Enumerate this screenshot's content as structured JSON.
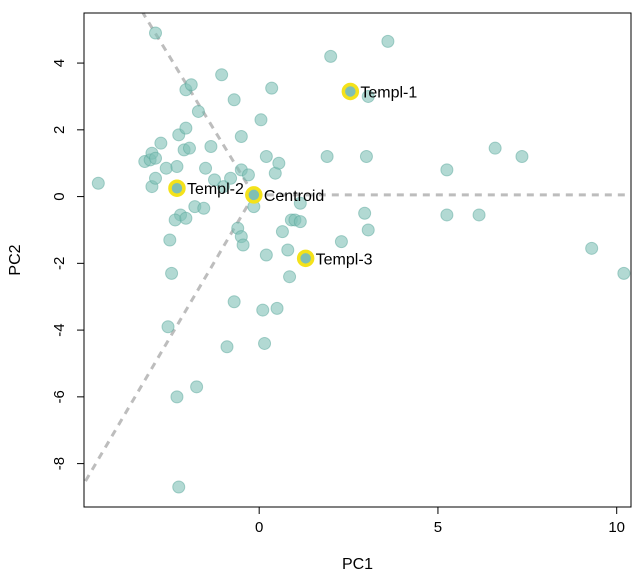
{
  "chart_data": {
    "type": "scatter",
    "title": "",
    "xlabel": "PC1",
    "ylabel": "PC2",
    "xlim": [
      -4.9,
      10.4
    ],
    "ylim": [
      -9.3,
      5.5
    ],
    "xticks": [
      "0",
      "5",
      "10"
    ],
    "xtick_values": [
      0,
      5,
      10
    ],
    "yticks": [
      "-8",
      "-6",
      "-4",
      "-2",
      "0",
      "2",
      "4"
    ],
    "ytick_values": [
      -8,
      -6,
      -4,
      -2,
      0,
      2,
      4
    ],
    "grid": false,
    "colors": {
      "points": "#7fbfb5",
      "highlight_ring": "#f4e21a",
      "dashed_lines": "#bdbdbd"
    },
    "points": [
      {
        "x": -4.5,
        "y": 0.4
      },
      {
        "x": -2.9,
        "y": 4.9
      },
      {
        "x": -3.2,
        "y": 1.05
      },
      {
        "x": -3.05,
        "y": 1.1
      },
      {
        "x": -3.0,
        "y": 1.3
      },
      {
        "x": -2.9,
        "y": 1.15
      },
      {
        "x": -2.75,
        "y": 1.6
      },
      {
        "x": -3.0,
        "y": 0.3
      },
      {
        "x": -2.9,
        "y": 0.55
      },
      {
        "x": -2.6,
        "y": 0.85
      },
      {
        "x": -2.3,
        "y": 0.9
      },
      {
        "x": -2.25,
        "y": 1.85
      },
      {
        "x": -2.05,
        "y": 2.05
      },
      {
        "x": -2.1,
        "y": 1.4
      },
      {
        "x": -1.95,
        "y": 1.45
      },
      {
        "x": -2.05,
        "y": 3.2
      },
      {
        "x": -1.9,
        "y": 3.35
      },
      {
        "x": -1.7,
        "y": 2.55
      },
      {
        "x": -1.5,
        "y": 0.85
      },
      {
        "x": -1.35,
        "y": 1.5
      },
      {
        "x": -1.05,
        "y": 3.65
      },
      {
        "x": -1.25,
        "y": 0.5
      },
      {
        "x": -1.0,
        "y": 0.3
      },
      {
        "x": -0.8,
        "y": 0.55
      },
      {
        "x": -0.7,
        "y": 2.9
      },
      {
        "x": -0.5,
        "y": 1.8
      },
      {
        "x": -0.5,
        "y": 0.8
      },
      {
        "x": -0.3,
        "y": 0.65
      },
      {
        "x": -0.15,
        "y": -0.3
      },
      {
        "x": 0.05,
        "y": 2.3
      },
      {
        "x": 0.2,
        "y": 1.2
      },
      {
        "x": 0.35,
        "y": 3.25
      },
      {
        "x": 0.45,
        "y": 0.7
      },
      {
        "x": 0.55,
        "y": 1.0
      },
      {
        "x": -1.8,
        "y": -0.3
      },
      {
        "x": -1.55,
        "y": -0.35
      },
      {
        "x": -2.2,
        "y": -0.55
      },
      {
        "x": -2.35,
        "y": -0.7
      },
      {
        "x": -2.05,
        "y": -0.65
      },
      {
        "x": -2.5,
        "y": -1.3
      },
      {
        "x": -2.45,
        "y": -2.3
      },
      {
        "x": -0.6,
        "y": -0.95
      },
      {
        "x": -0.5,
        "y": -1.2
      },
      {
        "x": -0.45,
        "y": -1.45
      },
      {
        "x": 0.2,
        "y": -1.75
      },
      {
        "x": 0.65,
        "y": -1.05
      },
      {
        "x": 0.8,
        "y": -1.6
      },
      {
        "x": 0.85,
        "y": -2.4
      },
      {
        "x": 0.9,
        "y": -0.7
      },
      {
        "x": 1.0,
        "y": -0.7
      },
      {
        "x": 1.15,
        "y": -0.2
      },
      {
        "x": 1.15,
        "y": -0.75
      },
      {
        "x": 1.9,
        "y": 1.2
      },
      {
        "x": 2.0,
        "y": 4.2
      },
      {
        "x": 2.3,
        "y": -1.35
      },
      {
        "x": 3.0,
        "y": 1.2
      },
      {
        "x": 3.05,
        "y": 3.0
      },
      {
        "x": 2.95,
        "y": -0.5
      },
      {
        "x": 3.05,
        "y": -1.0
      },
      {
        "x": 3.6,
        "y": 4.65
      },
      {
        "x": 5.25,
        "y": 0.8
      },
      {
        "x": 5.25,
        "y": -0.55
      },
      {
        "x": 6.15,
        "y": -0.55
      },
      {
        "x": 6.6,
        "y": 1.45
      },
      {
        "x": 7.35,
        "y": 1.2
      },
      {
        "x": 9.3,
        "y": -1.55
      },
      {
        "x": 10.2,
        "y": -2.3
      },
      {
        "x": -0.7,
        "y": -3.15
      },
      {
        "x": 0.1,
        "y": -3.4
      },
      {
        "x": 0.5,
        "y": -3.35
      },
      {
        "x": -2.55,
        "y": -3.9
      },
      {
        "x": -0.9,
        "y": -4.5
      },
      {
        "x": 0.15,
        "y": -4.4
      },
      {
        "x": -1.75,
        "y": -5.7
      },
      {
        "x": -2.3,
        "y": -6.0
      },
      {
        "x": -2.25,
        "y": -8.7
      }
    ],
    "highlighted": [
      {
        "x": 2.55,
        "y": 3.15,
        "label": "Templ-1"
      },
      {
        "x": -2.3,
        "y": 0.25,
        "label": "Templ-2"
      },
      {
        "x": -0.15,
        "y": 0.05,
        "label": "Centroid"
      },
      {
        "x": 1.3,
        "y": -1.85,
        "label": "Templ-3"
      }
    ],
    "dashed_lines": [
      {
        "from": [
          -0.15,
          0.05
        ],
        "to": [
          10.4,
          0.05
        ]
      },
      {
        "from": [
          -0.15,
          0.05
        ],
        "to": [
          -3.25,
          5.5
        ]
      },
      {
        "from": [
          -0.15,
          0.05
        ],
        "to": [
          -4.9,
          -8.6
        ]
      }
    ]
  }
}
